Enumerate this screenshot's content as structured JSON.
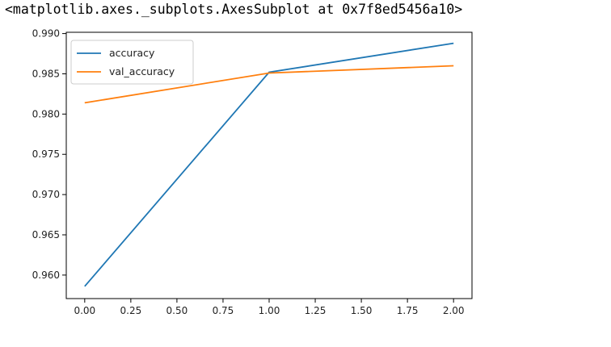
{
  "output_repr": "<matplotlib.axes._subplots.AxesSubplot at 0x7f8ed5456a10>",
  "chart_data": {
    "type": "line",
    "x": [
      0.0,
      1.0,
      2.0
    ],
    "series": [
      {
        "name": "accuracy",
        "color": "#1f77b4",
        "values": [
          0.9586,
          0.9852,
          0.9888
        ]
      },
      {
        "name": "val_accuracy",
        "color": "#ff7f0e",
        "values": [
          0.9814,
          0.9851,
          0.986
        ]
      }
    ],
    "xticks": [
      0.0,
      0.25,
      0.5,
      0.75,
      1.0,
      1.25,
      1.5,
      1.75,
      2.0
    ],
    "xtick_labels": [
      "0.00",
      "0.25",
      "0.50",
      "0.75",
      "1.00",
      "1.25",
      "1.50",
      "1.75",
      "2.00"
    ],
    "yticks": [
      0.96,
      0.965,
      0.97,
      0.975,
      0.98,
      0.985,
      0.99
    ],
    "ytick_labels": [
      "0.960",
      "0.965",
      "0.970",
      "0.975",
      "0.980",
      "0.985",
      "0.990"
    ],
    "xlim": [
      -0.1,
      2.1
    ],
    "ylim": [
      0.95708,
      0.99016
    ],
    "grid": false,
    "legend_position": "upper left",
    "title": "",
    "xlabel": "",
    "ylabel": ""
  }
}
